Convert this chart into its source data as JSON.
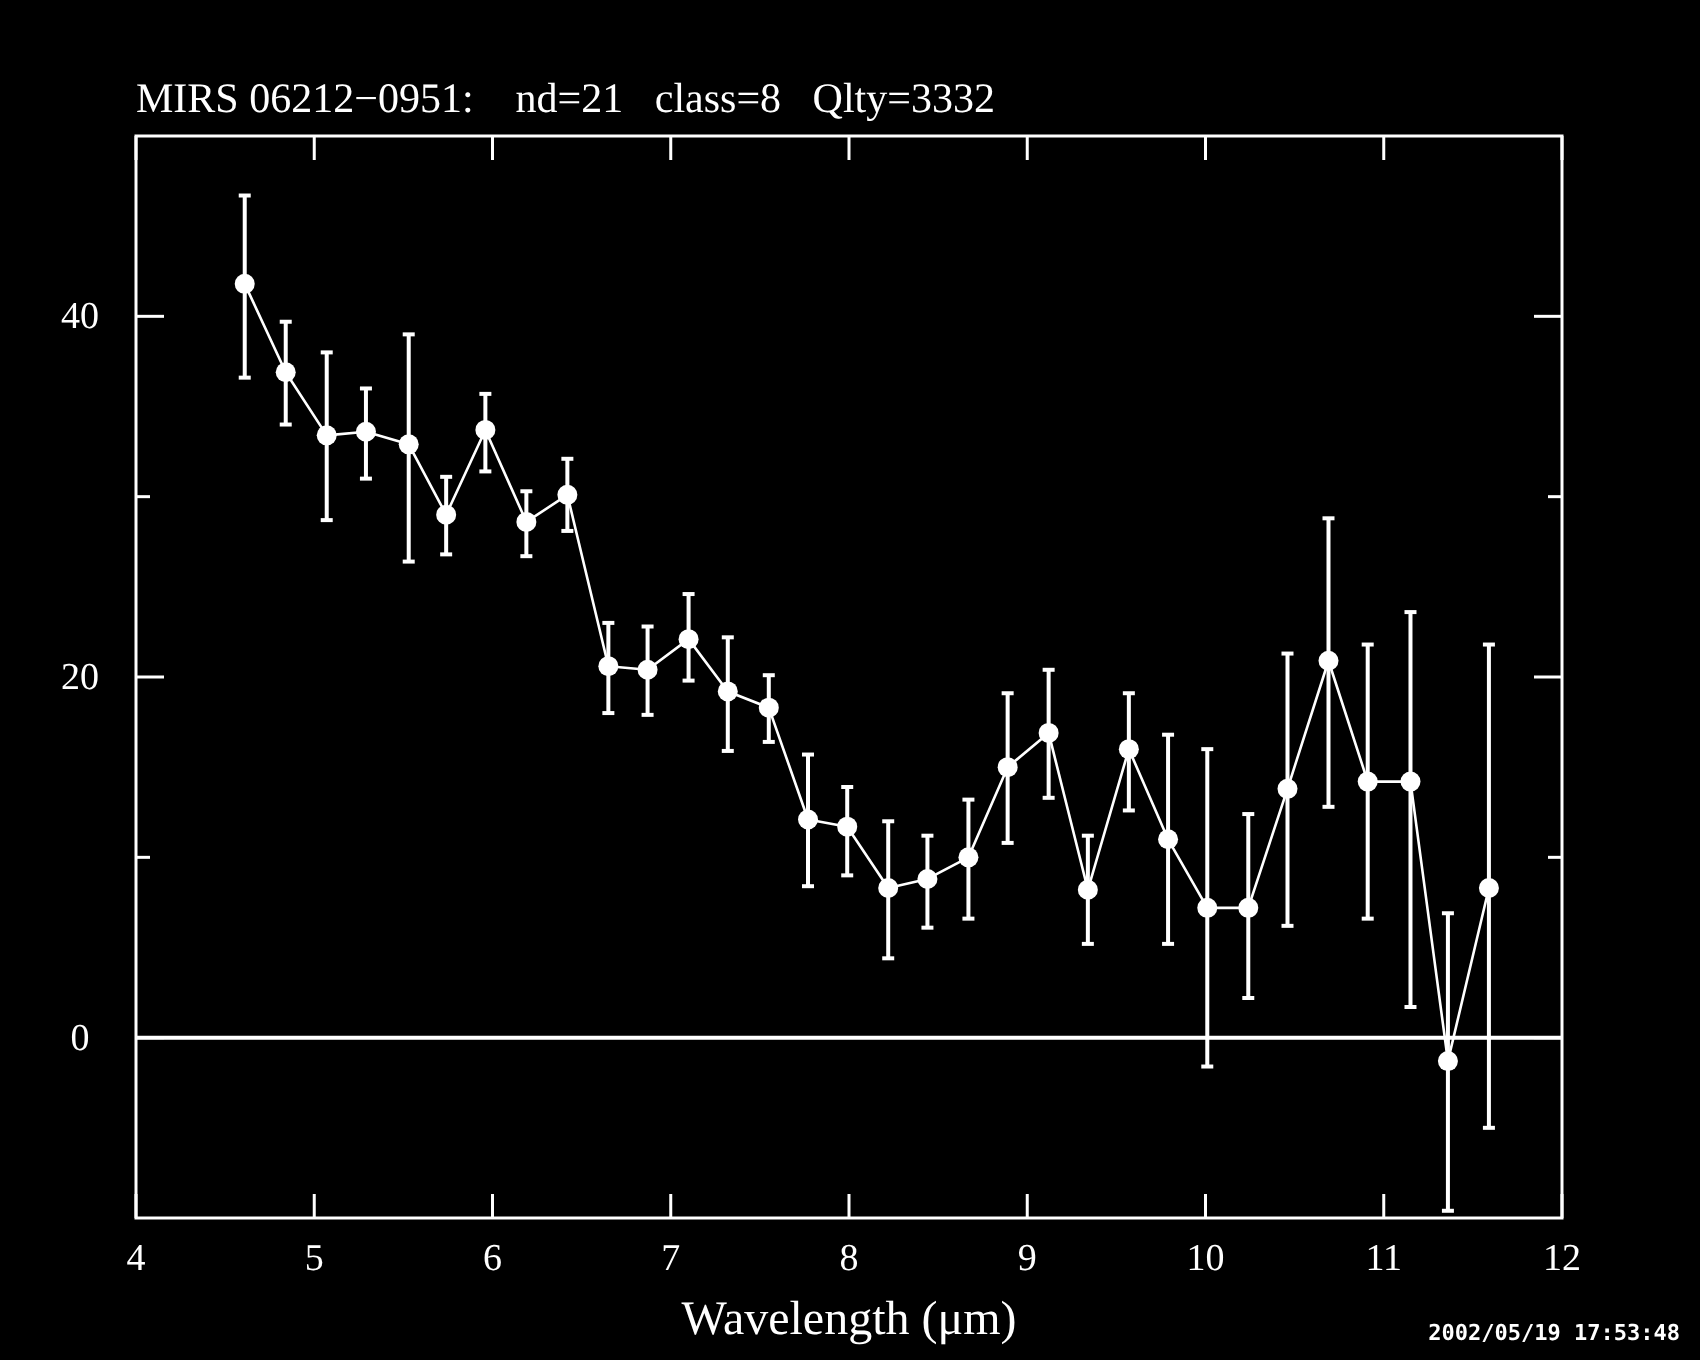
{
  "chart_data": {
    "type": "line",
    "title": "MIRS 06212−0951:    nd=21   class=8   Qlty=3332",
    "xlabel": "Wavelength (μm)",
    "x": [
      4.61,
      4.84,
      5.07,
      5.29,
      5.53,
      5.74,
      5.96,
      6.19,
      6.42,
      6.65,
      6.87,
      7.1,
      7.32,
      7.55,
      7.77,
      7.99,
      8.22,
      8.44,
      8.67,
      8.89,
      9.12,
      9.34,
      9.57,
      9.79,
      10.01,
      10.24,
      10.46,
      10.69,
      10.91,
      11.15,
      11.36,
      11.59
    ],
    "series": [
      {
        "color": "#ffffff",
        "values": [
          41.8,
          36.9,
          33.4,
          33.6,
          32.9,
          29.0,
          33.7,
          28.6,
          30.1,
          20.6,
          20.4,
          22.1,
          19.2,
          18.3,
          12.1,
          11.7,
          8.3,
          8.8,
          10.0,
          15.0,
          16.9,
          8.2,
          16.0,
          11.0,
          7.2,
          7.2,
          13.8,
          20.9,
          14.2,
          14.2,
          -1.3,
          8.3
        ],
        "errors": [
          [
            36.6,
            46.7
          ],
          [
            34.0,
            39.7
          ],
          [
            28.7,
            38.0
          ],
          [
            31.0,
            36.0
          ],
          [
            26.4,
            39.0
          ],
          [
            26.8,
            31.1
          ],
          [
            31.4,
            35.7
          ],
          [
            26.7,
            30.3
          ],
          [
            28.1,
            32.1
          ],
          [
            18.0,
            23.0
          ],
          [
            17.9,
            22.8
          ],
          [
            19.8,
            24.6
          ],
          [
            15.9,
            22.2
          ],
          [
            16.4,
            20.1
          ],
          [
            8.4,
            15.7
          ],
          [
            9.0,
            13.9
          ],
          [
            4.4,
            12.0
          ],
          [
            6.1,
            11.2
          ],
          [
            6.6,
            13.2
          ],
          [
            10.8,
            19.1
          ],
          [
            13.3,
            20.4
          ],
          [
            5.2,
            11.2
          ],
          [
            12.6,
            19.1
          ],
          [
            5.2,
            16.8
          ],
          [
            -1.6,
            16.0
          ],
          [
            2.2,
            12.4
          ],
          [
            6.2,
            21.3
          ],
          [
            12.8,
            28.8
          ],
          [
            6.6,
            21.8
          ],
          [
            1.7,
            23.6
          ],
          [
            -9.6,
            6.9
          ],
          [
            -5.0,
            21.8
          ]
        ]
      }
    ],
    "xlim": [
      4,
      12
    ],
    "xticks": [
      4,
      5,
      6,
      7,
      8,
      9,
      10,
      11,
      12
    ],
    "ylim": [
      -10,
      50
    ],
    "yticks": [
      0,
      {
        "value": 10,
        "label": null
      },
      20,
      {
        "value": 30,
        "label": null
      },
      40
    ],
    "ref_lines": [
      {
        "axis": "y",
        "value": 0,
        "color": "#ffffff"
      }
    ],
    "marker": "circle",
    "grid": false,
    "annotations": [
      "2002/05/19 17:53:48"
    ]
  }
}
